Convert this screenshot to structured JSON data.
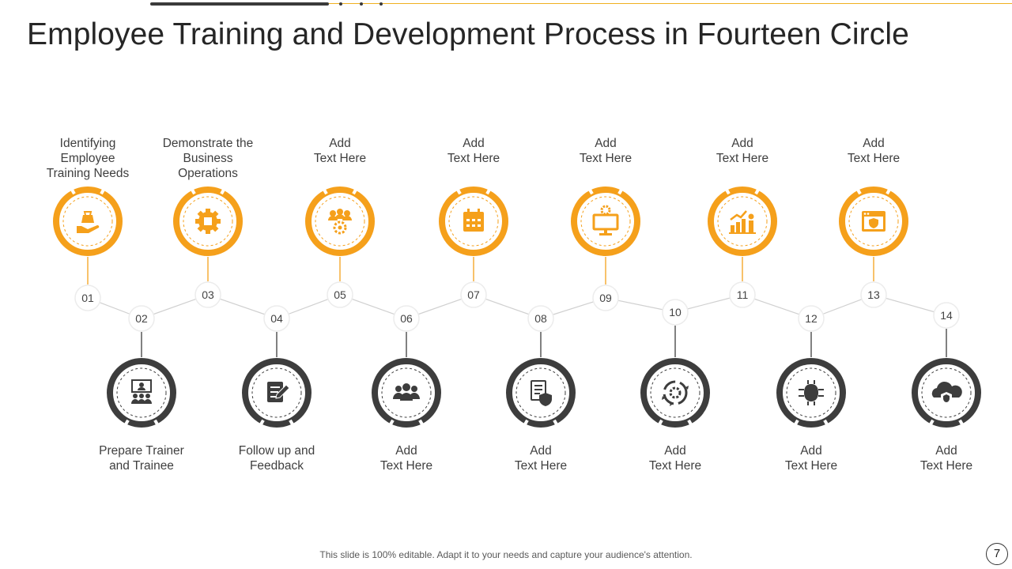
{
  "title": "Employee Training and Development Process in Fourteen Circle",
  "colors": {
    "accent": "#f5a01b",
    "dark": "#3d3d3d",
    "connector": "#d0d0d0",
    "icon_orange": "#f5a01b"
  },
  "steps": [
    {
      "number": "01",
      "lines": [
        "Identifying",
        "Employee",
        "Training Needs"
      ],
      "icon": "hand-money-bag-icon"
    },
    {
      "number": "02",
      "lines": [
        "Prepare Trainer",
        "and Trainee"
      ],
      "icon": "presentation-team-icon"
    },
    {
      "number": "03",
      "lines": [
        "Demonstrate the",
        "Business",
        "Operations"
      ],
      "icon": "gear-box-icon"
    },
    {
      "number": "04",
      "lines": [
        "Follow up and",
        "Feedback"
      ],
      "icon": "document-pen-icon"
    },
    {
      "number": "05",
      "lines": [
        "Add",
        "Text Here"
      ],
      "icon": "team-gear-icon"
    },
    {
      "number": "06",
      "lines": [
        "Add",
        "Text Here"
      ],
      "icon": "group-people-icon"
    },
    {
      "number": "07",
      "lines": [
        "Add",
        "Text Here"
      ],
      "icon": "calendar-icon"
    },
    {
      "number": "08",
      "lines": [
        "Add",
        "Text Here"
      ],
      "icon": "document-shield-icon"
    },
    {
      "number": "09",
      "lines": [
        "Add",
        "Text Here"
      ],
      "icon": "monitor-gear-icon"
    },
    {
      "number": "10",
      "lines": [
        "Add",
        "Text Here"
      ],
      "icon": "cycle-gear-icon"
    },
    {
      "number": "11",
      "lines": [
        "Add",
        "Text Here"
      ],
      "icon": "growth-chart-person-icon"
    },
    {
      "number": "12",
      "lines": [
        "Add",
        "Text Here"
      ],
      "icon": "circuit-chip-icon"
    },
    {
      "number": "13",
      "lines": [
        "Add",
        "Text Here"
      ],
      "icon": "browser-lock-icon"
    },
    {
      "number": "14",
      "lines": [
        "Add",
        "Text Here"
      ],
      "icon": "cloud-shield-icon"
    }
  ],
  "footer": "This slide is 100% editable. Adapt it to your needs and capture your audience's attention.",
  "page_number": "7"
}
